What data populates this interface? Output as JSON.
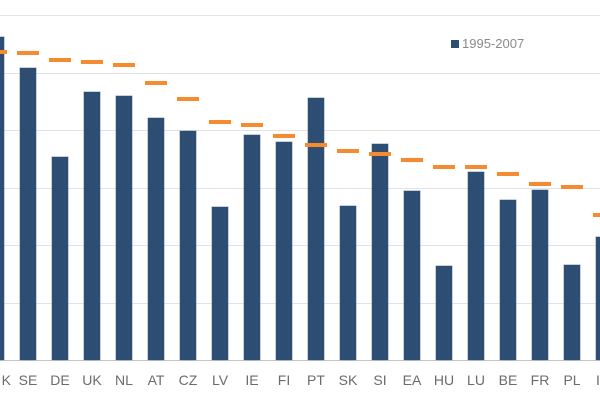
{
  "chart_data": {
    "type": "bar",
    "title": "",
    "xlabel": "",
    "ylabel": "",
    "y_tick_labels_visible": false,
    "grid": true,
    "legend_position": "top-right",
    "units_note": "values in gridline units (axis=0, top gridline=6); y-axis labels not shown",
    "ylim": [
      0,
      6
    ],
    "categories": [
      "K",
      "SE",
      "DE",
      "UK",
      "NL",
      "AT",
      "CZ",
      "LV",
      "IE",
      "FI",
      "PT",
      "SK",
      "SI",
      "EA",
      "HU",
      "LU",
      "BE",
      "FR",
      "PL",
      "I"
    ],
    "series": [
      {
        "name": "1995-2007",
        "type": "bar",
        "color": "#2e4d73",
        "values": [
          5.62,
          5.08,
          3.53,
          4.66,
          4.59,
          4.21,
          3.98,
          2.66,
          3.91,
          3.79,
          4.56,
          2.68,
          3.76,
          2.94,
          1.63,
          3.27,
          2.78,
          2.96,
          1.65,
          2.14
        ]
      },
      {
        "name": "",
        "type": "marker-dash",
        "color": "#f58a2e",
        "values": [
          5.36,
          5.34,
          5.22,
          5.18,
          5.13,
          4.82,
          4.54,
          4.14,
          4.09,
          3.9,
          3.74,
          3.63,
          3.58,
          3.48,
          3.36,
          3.36,
          3.23,
          3.06,
          3.01,
          2.52
        ]
      }
    ]
  },
  "legend": {
    "label": "1995-2007",
    "swatch_color": "#2e4d73"
  }
}
